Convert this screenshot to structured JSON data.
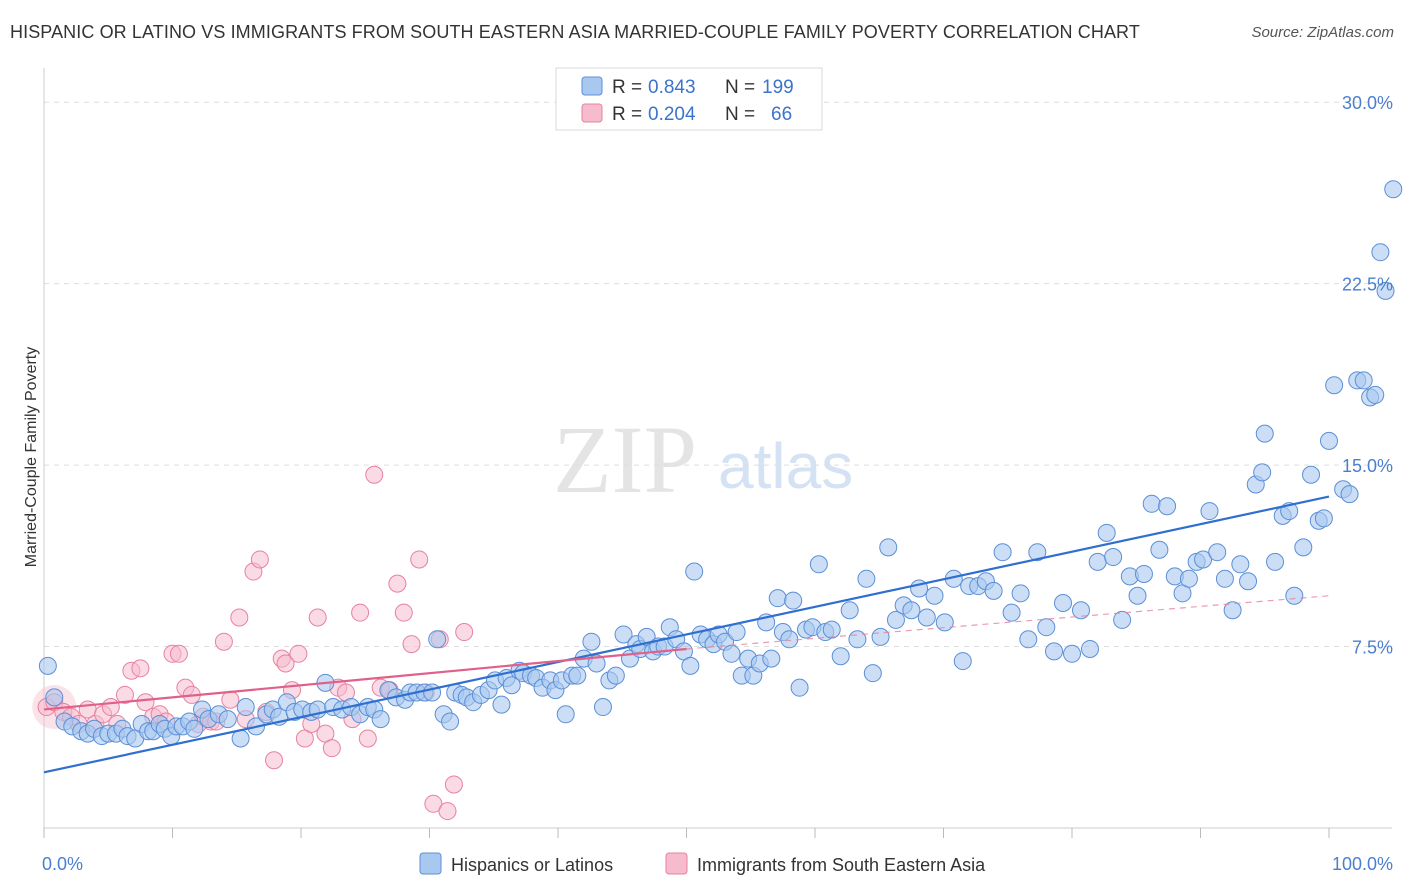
{
  "title": "HISPANIC OR LATINO VS IMMIGRANTS FROM SOUTH EASTERN ASIA MARRIED-COUPLE FAMILY POVERTY CORRELATION CHART",
  "source": "Source: ZipAtlas.com",
  "watermark": {
    "zip": "ZIP",
    "atlas": "atlas"
  },
  "colors": {
    "blue_fill": "#a9c8f0",
    "blue_stroke": "#5b8fd6",
    "blue_line": "#2f6fd0",
    "pink_fill": "#f6bccd",
    "pink_stroke": "#e7829f",
    "pink_line": "#e0608a",
    "tick_text": "#4a7fcf",
    "grid": "#dddddd"
  },
  "legend": {
    "rows": [
      {
        "r_label": "R =",
        "r_value": "0.843",
        "n_label": "N =",
        "n_value": "199"
      },
      {
        "r_label": "R =",
        "r_value": "0.204",
        "n_label": "N =",
        "n_value": "66"
      }
    ]
  },
  "chart_data": {
    "type": "scatter",
    "title": "HISPANIC OR LATINO VS IMMIGRANTS FROM SOUTH EASTERN ASIA MARRIED-COUPLE FAMILY POVERTY CORRELATION CHART",
    "xlabel": "",
    "ylabel": "Married-Couple Family Poverty",
    "xlim": [
      0,
      100
    ],
    "ylim": [
      0,
      31
    ],
    "x_tick_labels": [
      "0.0%",
      "100.0%"
    ],
    "y_ticks": [
      7.5,
      15.0,
      22.5,
      30.0
    ],
    "y_tick_labels": [
      "7.5%",
      "15.0%",
      "22.5%",
      "30.0%"
    ],
    "grid": true,
    "series": [
      {
        "name": "Hispanics or Latinos",
        "color": "blue",
        "trend": {
          "x": [
            0,
            100
          ],
          "y": [
            2.3,
            13.7
          ]
        },
        "points": [
          [
            0.3,
            6.7
          ],
          [
            0.8,
            5.4
          ],
          [
            1.6,
            4.4
          ],
          [
            2.2,
            4.2
          ],
          [
            2.9,
            4.0
          ],
          [
            3.4,
            3.9
          ],
          [
            3.9,
            4.1
          ],
          [
            4.5,
            3.8
          ],
          [
            5.0,
            3.9
          ],
          [
            5.6,
            3.9
          ],
          [
            6.1,
            4.1
          ],
          [
            6.5,
            3.8
          ],
          [
            7.1,
            3.7
          ],
          [
            7.6,
            4.3
          ],
          [
            8.1,
            4.0
          ],
          [
            8.5,
            4.0
          ],
          [
            9.0,
            4.3
          ],
          [
            9.4,
            4.1
          ],
          [
            9.9,
            3.8
          ],
          [
            10.3,
            4.2
          ],
          [
            10.8,
            4.2
          ],
          [
            11.3,
            4.4
          ],
          [
            11.7,
            4.1
          ],
          [
            12.3,
            4.9
          ],
          [
            12.8,
            4.5
          ],
          [
            13.6,
            4.7
          ],
          [
            14.3,
            4.5
          ],
          [
            15.3,
            3.7
          ],
          [
            15.7,
            5.0
          ],
          [
            16.5,
            4.2
          ],
          [
            17.3,
            4.7
          ],
          [
            17.8,
            4.9
          ],
          [
            18.3,
            4.6
          ],
          [
            18.9,
            5.2
          ],
          [
            19.5,
            4.8
          ],
          [
            20.1,
            4.9
          ],
          [
            20.8,
            4.8
          ],
          [
            21.3,
            4.9
          ],
          [
            21.9,
            6.0
          ],
          [
            22.5,
            5.0
          ],
          [
            23.2,
            4.9
          ],
          [
            23.9,
            5.0
          ],
          [
            24.6,
            4.7
          ],
          [
            25.2,
            5.0
          ],
          [
            25.7,
            4.9
          ],
          [
            26.2,
            4.5
          ],
          [
            26.8,
            5.7
          ],
          [
            27.4,
            5.4
          ],
          [
            28.1,
            5.3
          ],
          [
            28.5,
            5.6
          ],
          [
            29.0,
            5.6
          ],
          [
            29.6,
            5.6
          ],
          [
            30.2,
            5.6
          ],
          [
            30.6,
            7.8
          ],
          [
            31.1,
            4.7
          ],
          [
            31.6,
            4.4
          ],
          [
            32.0,
            5.6
          ],
          [
            32.5,
            5.5
          ],
          [
            32.9,
            5.4
          ],
          [
            33.4,
            5.2
          ],
          [
            34.0,
            5.5
          ],
          [
            34.6,
            5.7
          ],
          [
            35.1,
            6.1
          ],
          [
            35.6,
            5.1
          ],
          [
            36.0,
            6.2
          ],
          [
            36.4,
            5.9
          ],
          [
            37.0,
            6.5
          ],
          [
            37.3,
            6.4
          ],
          [
            37.9,
            6.3
          ],
          [
            38.3,
            6.2
          ],
          [
            38.8,
            5.8
          ],
          [
            39.4,
            6.1
          ],
          [
            39.8,
            5.7
          ],
          [
            40.3,
            6.1
          ],
          [
            40.6,
            4.7
          ],
          [
            41.1,
            6.3
          ],
          [
            41.5,
            6.3
          ],
          [
            42.0,
            7.0
          ],
          [
            42.6,
            7.7
          ],
          [
            43.0,
            6.8
          ],
          [
            43.5,
            5.0
          ],
          [
            44.0,
            6.1
          ],
          [
            44.5,
            6.3
          ],
          [
            45.1,
            8.0
          ],
          [
            45.6,
            7.0
          ],
          [
            46.1,
            7.6
          ],
          [
            46.4,
            7.4
          ],
          [
            46.9,
            7.9
          ],
          [
            47.4,
            7.3
          ],
          [
            47.8,
            7.5
          ],
          [
            48.3,
            7.5
          ],
          [
            48.7,
            8.3
          ],
          [
            49.2,
            7.8
          ],
          [
            49.8,
            7.3
          ],
          [
            50.3,
            6.7
          ],
          [
            50.6,
            10.6
          ],
          [
            51.1,
            8.0
          ],
          [
            51.6,
            7.8
          ],
          [
            52.1,
            7.6
          ],
          [
            52.5,
            8.0
          ],
          [
            53.0,
            7.7
          ],
          [
            53.5,
            7.2
          ],
          [
            53.9,
            8.1
          ],
          [
            54.3,
            6.3
          ],
          [
            54.8,
            7.0
          ],
          [
            55.2,
            6.3
          ],
          [
            55.7,
            6.8
          ],
          [
            56.2,
            8.5
          ],
          [
            56.6,
            7.0
          ],
          [
            57.1,
            9.5
          ],
          [
            57.5,
            8.1
          ],
          [
            58.0,
            7.8
          ],
          [
            58.3,
            9.4
          ],
          [
            58.8,
            5.8
          ],
          [
            59.3,
            8.2
          ],
          [
            59.8,
            8.3
          ],
          [
            60.3,
            10.9
          ],
          [
            60.8,
            8.1
          ],
          [
            61.3,
            8.2
          ],
          [
            62.0,
            7.1
          ],
          [
            62.7,
            9.0
          ],
          [
            63.3,
            7.8
          ],
          [
            64.0,
            10.3
          ],
          [
            64.5,
            6.4
          ],
          [
            65.1,
            7.9
          ],
          [
            65.7,
            11.6
          ],
          [
            66.3,
            8.6
          ],
          [
            66.9,
            9.2
          ],
          [
            67.5,
            9.0
          ],
          [
            68.1,
            9.9
          ],
          [
            68.7,
            8.7
          ],
          [
            69.3,
            9.6
          ],
          [
            70.1,
            8.5
          ],
          [
            70.8,
            10.3
          ],
          [
            71.5,
            6.9
          ],
          [
            72.0,
            10.0
          ],
          [
            72.7,
            10.0
          ],
          [
            73.3,
            10.2
          ],
          [
            73.9,
            9.8
          ],
          [
            74.6,
            11.4
          ],
          [
            75.3,
            8.9
          ],
          [
            76.0,
            9.7
          ],
          [
            76.6,
            7.8
          ],
          [
            77.3,
            11.4
          ],
          [
            78.0,
            8.3
          ],
          [
            78.6,
            7.3
          ],
          [
            79.3,
            9.3
          ],
          [
            80.0,
            7.2
          ],
          [
            80.7,
            9.0
          ],
          [
            81.4,
            7.4
          ],
          [
            82.0,
            11.0
          ],
          [
            82.7,
            12.2
          ],
          [
            83.2,
            11.2
          ],
          [
            83.9,
            8.6
          ],
          [
            84.5,
            10.4
          ],
          [
            85.1,
            9.6
          ],
          [
            85.6,
            10.5
          ],
          [
            86.2,
            13.4
          ],
          [
            86.8,
            11.5
          ],
          [
            87.4,
            13.3
          ],
          [
            88.0,
            10.4
          ],
          [
            88.6,
            9.7
          ],
          [
            89.1,
            10.3
          ],
          [
            89.7,
            11.0
          ],
          [
            90.2,
            11.1
          ],
          [
            90.7,
            13.1
          ],
          [
            91.3,
            11.4
          ],
          [
            91.9,
            10.3
          ],
          [
            92.5,
            9.0
          ],
          [
            93.1,
            10.9
          ],
          [
            93.7,
            10.2
          ],
          [
            94.3,
            14.2
          ],
          [
            94.8,
            14.7
          ],
          [
            95.0,
            16.3
          ],
          [
            95.8,
            11.0
          ],
          [
            96.4,
            12.9
          ],
          [
            96.9,
            13.1
          ],
          [
            97.3,
            9.6
          ],
          [
            98.0,
            11.6
          ],
          [
            98.6,
            14.6
          ],
          [
            99.2,
            12.7
          ],
          [
            99.6,
            12.8
          ],
          [
            100.0,
            16.0
          ],
          [
            100.4,
            18.3
          ],
          [
            101.1,
            14.0
          ],
          [
            101.6,
            13.8
          ],
          [
            102.2,
            18.5
          ],
          [
            102.7,
            18.5
          ],
          [
            103.2,
            17.8
          ],
          [
            103.6,
            17.9
          ],
          [
            104.0,
            23.8
          ],
          [
            104.4,
            22.2
          ],
          [
            105.0,
            26.4
          ]
        ]
      },
      {
        "name": "Immigrants from South Eastern Asia",
        "color": "pink",
        "trend": {
          "x": [
            0,
            50
          ],
          "y": [
            4.9,
            7.4
          ]
        },
        "dashed_extension": {
          "x": [
            50,
            100
          ],
          "y": [
            7.4,
            9.6
          ]
        },
        "points": [
          [
            0.2,
            5.0
          ],
          [
            0.8,
            5.2
          ],
          [
            1.5,
            4.8
          ],
          [
            2.1,
            4.6
          ],
          [
            2.7,
            4.3
          ],
          [
            3.4,
            4.9
          ],
          [
            4.0,
            4.3
          ],
          [
            4.6,
            4.7
          ],
          [
            5.2,
            5.0
          ],
          [
            5.7,
            4.3
          ],
          [
            6.3,
            5.5
          ],
          [
            6.8,
            6.5
          ],
          [
            7.5,
            6.6
          ],
          [
            7.9,
            5.2
          ],
          [
            8.5,
            4.6
          ],
          [
            9.0,
            4.7
          ],
          [
            9.5,
            4.4
          ],
          [
            10.0,
            7.2
          ],
          [
            10.5,
            7.2
          ],
          [
            11.0,
            5.8
          ],
          [
            11.5,
            5.5
          ],
          [
            12.0,
            4.3
          ],
          [
            12.4,
            4.6
          ],
          [
            13.0,
            4.4
          ],
          [
            13.4,
            4.4
          ],
          [
            14.0,
            7.7
          ],
          [
            14.5,
            5.3
          ],
          [
            15.2,
            8.7
          ],
          [
            15.7,
            4.5
          ],
          [
            16.3,
            10.6
          ],
          [
            16.8,
            11.1
          ],
          [
            17.3,
            4.8
          ],
          [
            17.9,
            2.8
          ],
          [
            18.5,
            7.0
          ],
          [
            18.8,
            6.8
          ],
          [
            19.3,
            5.7
          ],
          [
            19.8,
            7.2
          ],
          [
            20.3,
            3.7
          ],
          [
            20.8,
            4.3
          ],
          [
            21.3,
            8.7
          ],
          [
            21.9,
            3.9
          ],
          [
            22.4,
            3.3
          ],
          [
            22.9,
            5.8
          ],
          [
            23.5,
            5.6
          ],
          [
            24.0,
            4.5
          ],
          [
            24.6,
            8.9
          ],
          [
            25.2,
            3.7
          ],
          [
            25.7,
            14.6
          ],
          [
            26.2,
            5.8
          ],
          [
            26.9,
            5.7
          ],
          [
            27.5,
            10.1
          ],
          [
            28.0,
            8.9
          ],
          [
            28.6,
            7.6
          ],
          [
            29.2,
            11.1
          ],
          [
            29.7,
            5.6
          ],
          [
            30.3,
            1.0
          ],
          [
            30.8,
            7.8
          ],
          [
            31.4,
            0.7
          ],
          [
            31.9,
            1.8
          ],
          [
            32.7,
            8.1
          ]
        ]
      }
    ]
  },
  "bottom_legend": [
    {
      "label": "Hispanics or Latinos",
      "color": "blue"
    },
    {
      "label": "Immigrants from South Eastern Asia",
      "color": "pink"
    }
  ]
}
